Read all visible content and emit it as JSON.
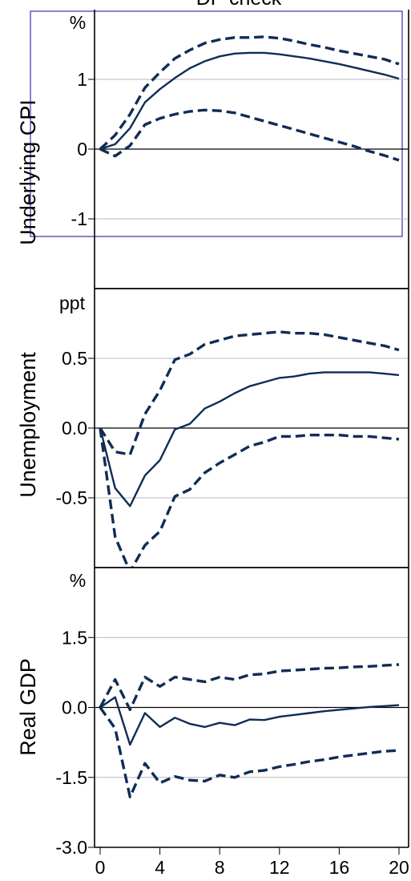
{
  "title": "DP check",
  "accent_color": "#0f2d55",
  "chart_data": [
    {
      "type": "line",
      "ylabel": "Underlying CPI",
      "unit": "%",
      "x": [
        0,
        1,
        2,
        3,
        4,
        5,
        6,
        7,
        8,
        9,
        10,
        11,
        12,
        13,
        14,
        15,
        16,
        17,
        18,
        19,
        20
      ],
      "xlim": [
        0,
        20
      ],
      "ylim": [
        -2.0,
        2.0
      ],
      "yticks": [
        -1,
        0,
        1
      ],
      "ytick_labels": [
        "-1",
        "0",
        "1"
      ],
      "grid": true,
      "series": [
        {
          "style": "dashed",
          "values": [
            0,
            0.2,
            0.5,
            0.88,
            1.1,
            1.3,
            1.42,
            1.52,
            1.57,
            1.6,
            1.6,
            1.61,
            1.59,
            1.55,
            1.5,
            1.46,
            1.41,
            1.37,
            1.33,
            1.29,
            1.22
          ]
        },
        {
          "style": "solid",
          "values": [
            0,
            0.07,
            0.3,
            0.67,
            0.86,
            1.02,
            1.16,
            1.26,
            1.33,
            1.37,
            1.38,
            1.38,
            1.36,
            1.33,
            1.3,
            1.26,
            1.22,
            1.17,
            1.12,
            1.07,
            1.01
          ]
        },
        {
          "style": "dashed",
          "values": [
            0,
            -0.1,
            0.05,
            0.35,
            0.44,
            0.5,
            0.54,
            0.56,
            0.55,
            0.52,
            0.46,
            0.4,
            0.34,
            0.28,
            0.22,
            0.16,
            0.1,
            0.04,
            -0.03,
            -0.09,
            -0.16
          ]
        }
      ]
    },
    {
      "type": "line",
      "ylabel": "Unemployment",
      "unit": "ppt",
      "x": [
        0,
        1,
        2,
        3,
        4,
        5,
        6,
        7,
        8,
        9,
        10,
        11,
        12,
        13,
        14,
        15,
        16,
        17,
        18,
        19,
        20
      ],
      "xlim": [
        0,
        20
      ],
      "ylim": [
        -1.0,
        1.0
      ],
      "yticks": [
        -0.5,
        0.0,
        0.5
      ],
      "ytick_labels": [
        "-0.5",
        "0.0",
        "0.5"
      ],
      "grid": true,
      "series": [
        {
          "style": "dashed",
          "values": [
            0,
            -0.17,
            -0.19,
            0.1,
            0.27,
            0.49,
            0.53,
            0.6,
            0.63,
            0.66,
            0.67,
            0.68,
            0.69,
            0.68,
            0.68,
            0.67,
            0.65,
            0.63,
            0.61,
            0.59,
            0.56
          ]
        },
        {
          "style": "solid",
          "values": [
            0,
            -0.43,
            -0.56,
            -0.34,
            -0.23,
            -0.01,
            0.03,
            0.14,
            0.19,
            0.25,
            0.3,
            0.33,
            0.36,
            0.37,
            0.39,
            0.4,
            0.4,
            0.4,
            0.4,
            0.39,
            0.38
          ]
        },
        {
          "style": "dashed",
          "values": [
            0,
            -0.78,
            -1.03,
            -0.84,
            -0.74,
            -0.49,
            -0.44,
            -0.32,
            -0.25,
            -0.19,
            -0.13,
            -0.1,
            -0.06,
            -0.06,
            -0.05,
            -0.05,
            -0.05,
            -0.06,
            -0.06,
            -0.07,
            -0.08
          ]
        }
      ]
    },
    {
      "type": "line",
      "ylabel": "Real GDP",
      "unit": "%",
      "x": [
        0,
        1,
        2,
        3,
        4,
        5,
        6,
        7,
        8,
        9,
        10,
        11,
        12,
        13,
        14,
        15,
        16,
        17,
        18,
        19,
        20
      ],
      "xlim": [
        0,
        20
      ],
      "xticks": [
        0,
        4,
        8,
        12,
        16,
        20
      ],
      "xtick_labels": [
        "0",
        "4",
        "8",
        "12",
        "16",
        "20"
      ],
      "ylim": [
        -3.0,
        3.0
      ],
      "yticks": [
        -3.0,
        -1.5,
        0.0,
        1.5
      ],
      "ytick_labels": [
        "-3.0",
        "-1.5",
        "0.0",
        "1.5"
      ],
      "grid": true,
      "series": [
        {
          "style": "dashed",
          "values": [
            0,
            0.6,
            -0.05,
            0.65,
            0.45,
            0.65,
            0.6,
            0.55,
            0.65,
            0.6,
            0.7,
            0.72,
            0.78,
            0.8,
            0.82,
            0.84,
            0.85,
            0.87,
            0.88,
            0.9,
            0.92
          ]
        },
        {
          "style": "solid",
          "values": [
            0,
            0.22,
            -0.8,
            -0.12,
            -0.42,
            -0.22,
            -0.35,
            -0.42,
            -0.33,
            -0.38,
            -0.26,
            -0.27,
            -0.2,
            -0.16,
            -0.12,
            -0.08,
            -0.05,
            -0.02,
            0.01,
            0.03,
            0.05
          ]
        },
        {
          "style": "dashed",
          "values": [
            0,
            -0.45,
            -1.92,
            -1.2,
            -1.62,
            -1.48,
            -1.56,
            -1.58,
            -1.45,
            -1.5,
            -1.38,
            -1.35,
            -1.27,
            -1.22,
            -1.16,
            -1.12,
            -1.06,
            -1.02,
            -0.98,
            -0.94,
            -0.92
          ]
        }
      ]
    }
  ]
}
